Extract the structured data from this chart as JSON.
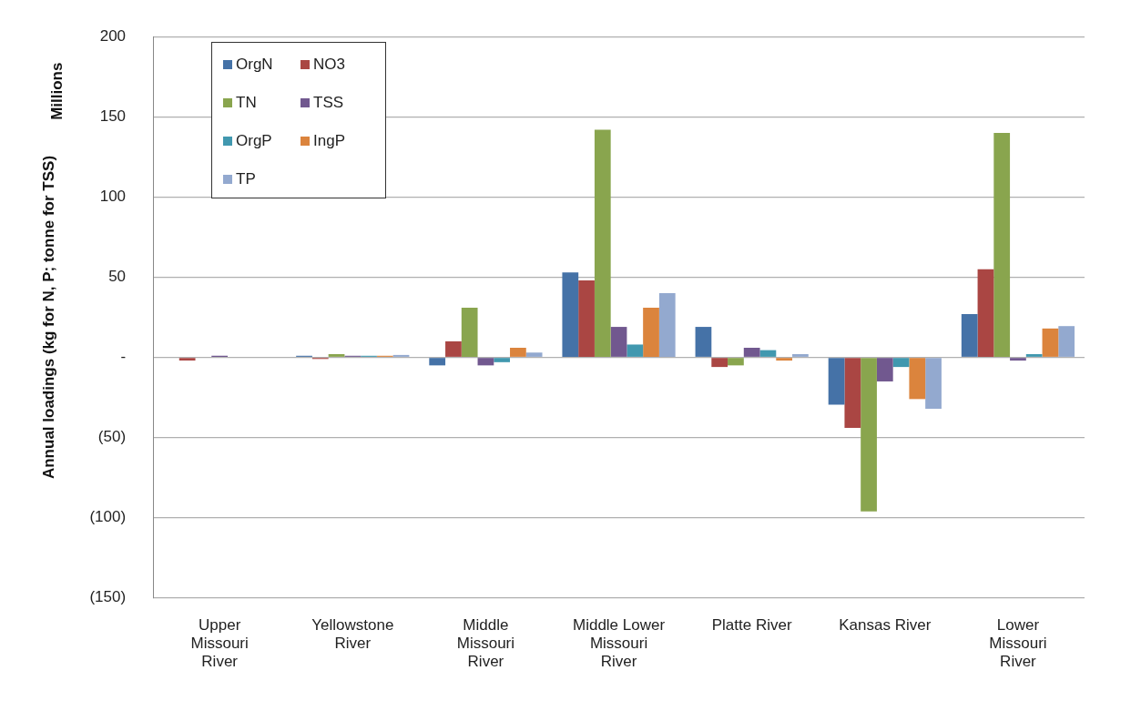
{
  "chart_data": {
    "type": "bar",
    "ylabel": "Annual loadings (kg for N, P; tonne for TSS)",
    "annotations": [
      "Millions"
    ],
    "categories": [
      "Upper Missouri River",
      "Yellowstone River",
      "Middle Missouri River",
      "Middle Lower Missouri River",
      "Platte River",
      "Kansas River",
      "Lower Missouri River"
    ],
    "series": [
      {
        "name": "OrgN",
        "color": "#4572a7",
        "values": [
          0,
          1,
          -5,
          53,
          19,
          -29.5,
          27
        ]
      },
      {
        "name": "NO3",
        "color": "#aa4643",
        "values": [
          -2,
          -1,
          10,
          48,
          -6,
          -44,
          55
        ]
      },
      {
        "name": "TN",
        "color": "#89a54e",
        "values": [
          0,
          2,
          31,
          142,
          -5,
          -96,
          140
        ]
      },
      {
        "name": "TSS",
        "color": "#71588f",
        "values": [
          1,
          1,
          -5,
          19,
          6,
          -15,
          -2
        ]
      },
      {
        "name": "OrgP",
        "color": "#4198af",
        "values": [
          0,
          1,
          -3,
          8,
          4.5,
          -6,
          2
        ]
      },
      {
        "name": "IngP",
        "color": "#db843d",
        "values": [
          0,
          1,
          6,
          31,
          -2,
          -26,
          18
        ]
      },
      {
        "name": "TP",
        "color": "#93a9cf",
        "values": [
          0,
          1.5,
          3,
          40,
          2,
          -32,
          19.5
        ]
      }
    ],
    "ylim": [
      -150,
      200
    ],
    "yticks": [
      200,
      150,
      100,
      50,
      {
        "value": 0,
        "label": "-"
      },
      {
        "value": -50,
        "label": "(50)"
      },
      {
        "value": -100,
        "label": "(100)"
      },
      {
        "value": -150,
        "label": "(150)"
      }
    ],
    "grid": "y",
    "legend": "top left"
  }
}
